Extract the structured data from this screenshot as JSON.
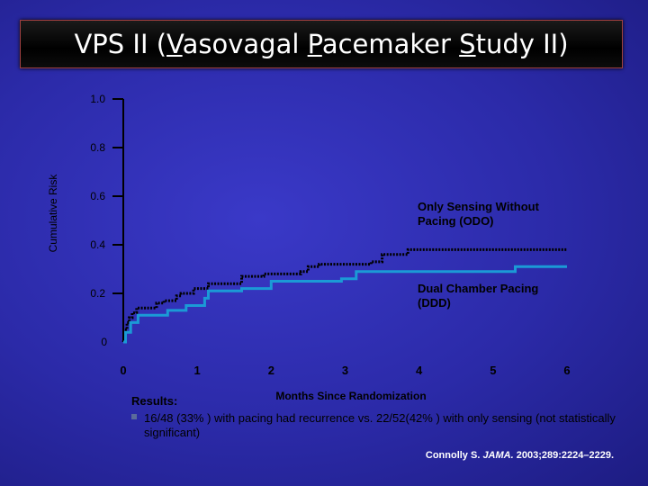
{
  "slide": {
    "title_parts": [
      {
        "text": "VPS II  (",
        "u": false
      },
      {
        "text": "V",
        "u": true
      },
      {
        "text": "asovagal ",
        "u": false
      },
      {
        "text": "P",
        "u": true
      },
      {
        "text": "acemaker ",
        "u": false
      },
      {
        "text": "S",
        "u": true
      },
      {
        "text": "tudy II)",
        "u": false
      }
    ],
    "results_heading": "Results:",
    "results_text": "16/48 (33% ) with pacing had recurrence vs. 22/52(42% ) with only sensing (not statistically significant)",
    "citation_author": "Connolly S.",
    "citation_journal": "JAMA.",
    "citation_rest": "2003;289:2224–2229."
  },
  "chart_data": {
    "type": "line",
    "ylabel": "Cumulative Risk",
    "xlabel": "Months Since Randomization",
    "xlim": [
      0,
      6
    ],
    "ylim": [
      0,
      1.0
    ],
    "x_ticks": [
      "0",
      "1",
      "2",
      "3",
      "4",
      "5",
      "6"
    ],
    "y_ticks": [
      "0",
      "0.2",
      "0.4",
      "0.6",
      "0.8",
      "1.0"
    ],
    "series": [
      {
        "name": "Only Sensing Without Pacing (ODO)",
        "style": "dotted",
        "color": "#000000",
        "points": [
          [
            0,
            0
          ],
          [
            0.02,
            0.02
          ],
          [
            0.02,
            0.05
          ],
          [
            0.05,
            0.05
          ],
          [
            0.05,
            0.08
          ],
          [
            0.08,
            0.08
          ],
          [
            0.08,
            0.1
          ],
          [
            0.12,
            0.1
          ],
          [
            0.12,
            0.12
          ],
          [
            0.18,
            0.12
          ],
          [
            0.18,
            0.14
          ],
          [
            0.45,
            0.14
          ],
          [
            0.45,
            0.16
          ],
          [
            0.55,
            0.16
          ],
          [
            0.55,
            0.17
          ],
          [
            0.72,
            0.17
          ],
          [
            0.72,
            0.19
          ],
          [
            0.78,
            0.19
          ],
          [
            0.78,
            0.2
          ],
          [
            0.95,
            0.2
          ],
          [
            0.95,
            0.22
          ],
          [
            1.15,
            0.22
          ],
          [
            1.15,
            0.24
          ],
          [
            1.6,
            0.24
          ],
          [
            1.6,
            0.27
          ],
          [
            1.9,
            0.27
          ],
          [
            1.9,
            0.28
          ],
          [
            2.4,
            0.28
          ],
          [
            2.4,
            0.29
          ],
          [
            2.5,
            0.29
          ],
          [
            2.5,
            0.31
          ],
          [
            2.65,
            0.31
          ],
          [
            2.65,
            0.32
          ],
          [
            3.35,
            0.32
          ],
          [
            3.35,
            0.33
          ],
          [
            3.5,
            0.33
          ],
          [
            3.5,
            0.36
          ],
          [
            3.85,
            0.36
          ],
          [
            3.85,
            0.38
          ],
          [
            6.0,
            0.38
          ]
        ]
      },
      {
        "name": "Dual Chamber Pacing (DDD)",
        "style": "solid",
        "color": "#1b9ad6",
        "points": [
          [
            0,
            0
          ],
          [
            0.03,
            0
          ],
          [
            0.03,
            0.04
          ],
          [
            0.1,
            0.04
          ],
          [
            0.1,
            0.08
          ],
          [
            0.2,
            0.08
          ],
          [
            0.2,
            0.11
          ],
          [
            0.6,
            0.11
          ],
          [
            0.6,
            0.13
          ],
          [
            0.85,
            0.13
          ],
          [
            0.85,
            0.15
          ],
          [
            1.1,
            0.15
          ],
          [
            1.1,
            0.18
          ],
          [
            1.15,
            0.18
          ],
          [
            1.15,
            0.21
          ],
          [
            1.6,
            0.21
          ],
          [
            1.6,
            0.22
          ],
          [
            2.0,
            0.22
          ],
          [
            2.0,
            0.25
          ],
          [
            2.95,
            0.25
          ],
          [
            2.95,
            0.26
          ],
          [
            3.15,
            0.26
          ],
          [
            3.15,
            0.29
          ],
          [
            5.3,
            0.29
          ],
          [
            5.3,
            0.31
          ],
          [
            6.0,
            0.31
          ]
        ]
      }
    ],
    "annotations": [
      {
        "lines": [
          "Only Sensing Without",
          "Pacing (ODO)"
        ]
      },
      {
        "lines": [
          "Dual Chamber Pacing",
          "(DDD)"
        ]
      }
    ],
    "grid": false,
    "background": "#2d2cb0"
  }
}
